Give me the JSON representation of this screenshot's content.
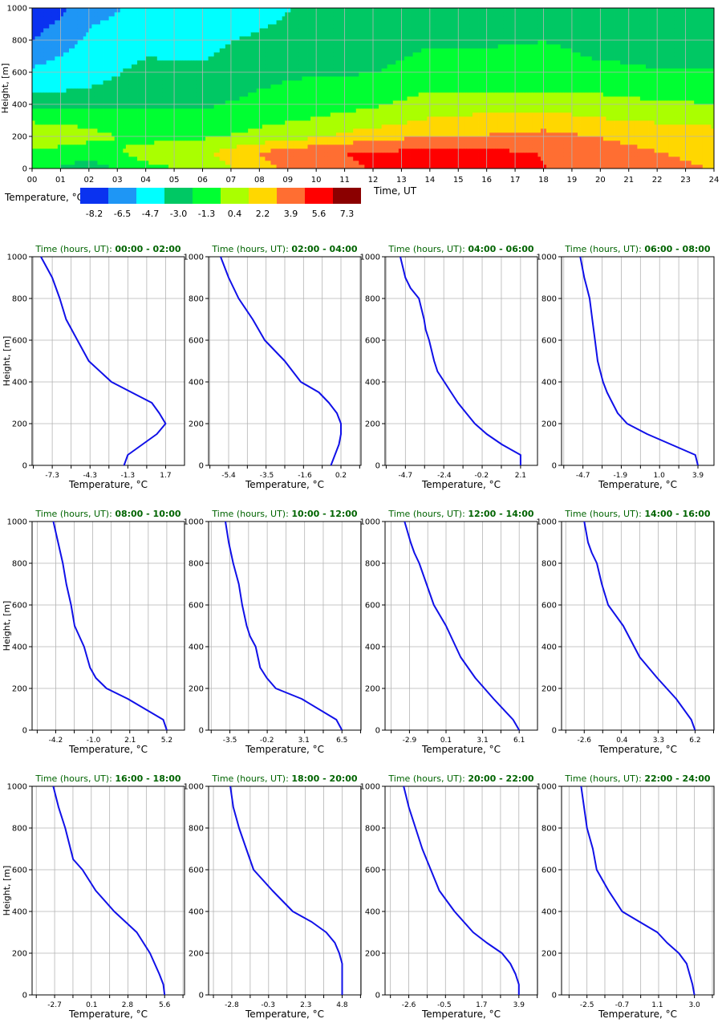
{
  "heatmap": {
    "ylabel": "Height, [m]",
    "xlabel": "Time, UT",
    "x_ticks": [
      "00",
      "01",
      "02",
      "03",
      "04",
      "05",
      "06",
      "07",
      "08",
      "09",
      "10",
      "11",
      "12",
      "13",
      "14",
      "15",
      "16",
      "17",
      "18",
      "19",
      "20",
      "21",
      "22",
      "23",
      "24"
    ],
    "y_ticks": [
      "0",
      "200",
      "400",
      "600",
      "800",
      "1000"
    ],
    "x_range": [
      0,
      24
    ],
    "y_range": [
      0,
      1000
    ],
    "grid": true,
    "colorbar_title": "Temperature, °C",
    "colorbar_labels": [
      "-8.2",
      "-6.5",
      "-4.7",
      "-3.0",
      "-1.3",
      "0.4",
      "2.2",
      "3.9",
      "5.6",
      "7.3"
    ],
    "colorbar_colors": [
      "#0a32f0",
      "#1e96f5",
      "#00ffff",
      "#00c864",
      "#00ff32",
      "#aaff00",
      "#ffd700",
      "#ff6e32",
      "#ff0000",
      "#8b0000"
    ]
  },
  "chart_data": [
    {
      "type": "heatmap",
      "title": "",
      "xlabel": "Time, UT",
      "ylabel": "Height, [m]",
      "x_range": [
        0,
        24
      ],
      "y_range": [
        0,
        1000
      ],
      "colorbar_label": "Temperature, °C",
      "color_levels": [
        -8.2,
        -6.5,
        -4.7,
        -3.0,
        -1.3,
        0.4,
        2.2,
        3.9,
        5.6,
        7.3
      ],
      "heights": [
        0,
        100,
        200,
        300,
        400,
        500,
        600,
        700,
        800,
        900,
        1000
      ],
      "hours": [
        0,
        2,
        4,
        6,
        8,
        10,
        12,
        14,
        16,
        18,
        20,
        22,
        24
      ],
      "values": [
        [
          -1.6,
          -3.0,
          -1.0,
          0.0,
          2.4,
          4.4,
          4.8,
          4.9,
          4.9,
          4.8,
          3.9,
          3.4,
          3.0
        ],
        [
          -0.6,
          -1.5,
          0.3,
          0.9,
          3.2,
          4.6,
          4.9,
          5.2,
          5.1,
          4.7,
          3.6,
          3.1,
          2.7
        ],
        [
          0.7,
          0.1,
          -1.0,
          -0.7,
          0.0,
          1.0,
          2.5,
          3.0,
          3.2,
          3.6,
          3.0,
          2.5,
          2.1
        ],
        [
          -0.6,
          -0.9,
          -1.8,
          -1.6,
          -0.8,
          -0.3,
          0.4,
          1.5,
          1.9,
          2.2,
          1.5,
          1.1,
          0.8
        ],
        [
          -2.6,
          -2.6,
          -2.3,
          -2.4,
          -1.6,
          -1.1,
          -0.7,
          0.3,
          0.5,
          0.6,
          0.2,
          -0.2,
          -0.4
        ],
        [
          -4.4,
          -3.8,
          -3.0,
          -3.2,
          -2.2,
          -1.7,
          -1.6,
          -0.6,
          -0.6,
          -0.6,
          -0.8,
          -1.2,
          -1.3
        ],
        [
          -5.3,
          -4.6,
          -3.3,
          -3.5,
          -2.5,
          -2.3,
          -2.2,
          -1.4,
          -1.4,
          -1.3,
          -1.7,
          -2.1,
          -2.0
        ],
        [
          -6.2,
          -4.9,
          -3.9,
          -4.0,
          -3.1,
          -2.6,
          -2.6,
          -1.9,
          -2.0,
          -1.7,
          -2.3,
          -2.4,
          -2.5
        ],
        [
          -7.3,
          -5.3,
          -4.4,
          -4.2,
          -3.6,
          -3.1,
          -2.8,
          -2.3,
          -2.3,
          -2.2,
          -2.6,
          -2.7,
          -2.8
        ],
        [
          -8.2,
          -5.7,
          -5.0,
          -4.6,
          -4.0,
          -3.4,
          -3.1,
          -2.6,
          -2.5,
          -2.6,
          -3.0,
          -3.1,
          -3.1
        ],
        [
          -9.5,
          -6.2,
          -5.2,
          -4.8,
          -4.2,
          -3.6,
          -3.4,
          -2.8,
          -2.7,
          -2.8,
          -3.2,
          -3.3,
          -3.3
        ]
      ]
    },
    {
      "type": "line",
      "title_prefix": "Time (hours, UT): ",
      "title_range": "00:00 - 02:00",
      "xlabel": "Temperature, °C",
      "ylabel": "Height, [m]",
      "xticks": [
        "-7.3",
        "-4.3",
        "-1.3",
        "1.7"
      ],
      "xlim": [
        -8.9,
        3.2
      ],
      "ylim": [
        0,
        1000
      ],
      "series": [
        {
          "color": "#1010e8",
          "x": [
            -1.6,
            -1.3,
            1.0,
            1.7,
            1.2,
            0.6,
            -1.0,
            -2.6,
            -4.4,
            -5.3,
            -6.2,
            -6.7,
            -7.3,
            -8.2
          ],
          "y": [
            0,
            50,
            150,
            200,
            250,
            300,
            350,
            400,
            500,
            600,
            700,
            800,
            900,
            1000
          ]
        }
      ]
    },
    {
      "type": "line",
      "title_prefix": "Time (hours, UT): ",
      "title_range": "02:00 - 04:00",
      "xlabel": "Temperature, °C",
      "ylabel": "Height, [m]",
      "xticks": [
        "-5.4",
        "-3.5",
        "-1.6",
        "0.2"
      ],
      "xlim": [
        -6.4,
        1.2
      ],
      "ylim": [
        0,
        1000
      ],
      "series": [
        {
          "color": "#1010e8",
          "x": [
            -0.3,
            -0.1,
            0.1,
            0.2,
            0.2,
            0.0,
            -0.4,
            -0.9,
            -1.8,
            -2.6,
            -3.6,
            -4.2,
            -4.9,
            -5.4,
            -5.8
          ],
          "y": [
            0,
            50,
            100,
            150,
            200,
            250,
            300,
            350,
            400,
            500,
            600,
            700,
            800,
            900,
            1000
          ]
        }
      ]
    },
    {
      "type": "line",
      "title_prefix": "Time (hours, UT): ",
      "title_range": "04:00 - 06:00",
      "xlabel": "Temperature, °C",
      "ylabel": "Height, [m]",
      "xticks": [
        "-4.7",
        "-2.4",
        "-0.2",
        "2.1"
      ],
      "xlim": [
        -5.9,
        3.1
      ],
      "ylim": [
        0,
        1000
      ],
      "series": [
        {
          "color": "#1010e8",
          "x": [
            2.1,
            2.1,
            1.0,
            0.1,
            -0.6,
            -1.1,
            -1.6,
            -2.0,
            -2.4,
            -2.8,
            -3.0,
            -3.3,
            -3.5,
            -3.6,
            -3.9,
            -4.4,
            -4.7,
            -5.0
          ],
          "y": [
            0,
            50,
            100,
            150,
            200,
            250,
            300,
            350,
            400,
            450,
            500,
            600,
            650,
            700,
            800,
            850,
            900,
            1000
          ]
        }
      ]
    },
    {
      "type": "line",
      "title_prefix": "Time (hours, UT): ",
      "title_range": "06:00 - 08:00",
      "xlabel": "Temperature, °C",
      "ylabel": "Height, [m]",
      "xticks": [
        "-4.7",
        "-1.9",
        "1.0",
        "3.9"
      ],
      "xlim": [
        -6.3,
        5.1
      ],
      "ylim": [
        0,
        1000
      ],
      "series": [
        {
          "color": "#1010e8",
          "x": [
            3.9,
            3.7,
            1.9,
            0.1,
            -1.4,
            -2.1,
            -2.5,
            -2.9,
            -3.2,
            -3.4,
            -3.6,
            -3.8,
            -3.9,
            -4.0,
            -4.2,
            -4.4,
            -4.6,
            -4.9
          ],
          "y": [
            0,
            50,
            100,
            150,
            200,
            250,
            300,
            350,
            400,
            450,
            500,
            600,
            650,
            700,
            800,
            850,
            900,
            1000
          ]
        }
      ]
    },
    {
      "type": "line",
      "title_prefix": "Time (hours, UT): ",
      "title_range": "08:00 - 10:00",
      "xlabel": "Temperature, °C",
      "ylabel": "Height, [m]",
      "xticks": [
        "-4.2",
        "-1.0",
        "2.1",
        "5.2"
      ],
      "xlim": [
        -6.2,
        6.7
      ],
      "ylim": [
        0,
        1000
      ],
      "series": [
        {
          "color": "#1010e8",
          "x": [
            5.2,
            4.9,
            1.9,
            0.1,
            -0.8,
            -1.3,
            -1.8,
            -2.2,
            -2.6,
            -2.9,
            -3.3,
            -3.6,
            -4.0,
            -4.4
          ],
          "y": [
            0,
            50,
            150,
            200,
            250,
            300,
            400,
            450,
            500,
            600,
            700,
            800,
            900,
            1000
          ]
        }
      ]
    },
    {
      "type": "line",
      "title_prefix": "Time (hours, UT): ",
      "title_range": "10:00 - 12:00",
      "xlabel": "Temperature, °C",
      "ylabel": "Height, [m]",
      "xticks": [
        "-3.5",
        "-0.2",
        "3.1",
        "6.5"
      ],
      "xlim": [
        -5.4,
        8.2
      ],
      "ylim": [
        0,
        1000
      ],
      "series": [
        {
          "color": "#1010e8",
          "x": [
            6.5,
            6.0,
            2.9,
            0.6,
            -0.2,
            -0.8,
            -1.2,
            -1.7,
            -2.0,
            -2.4,
            -2.7,
            -3.2,
            -3.6,
            -3.9
          ],
          "y": [
            0,
            50,
            150,
            200,
            250,
            300,
            400,
            450,
            500,
            600,
            700,
            800,
            900,
            1000
          ]
        }
      ]
    },
    {
      "type": "line",
      "title_prefix": "Time (hours, UT): ",
      "title_range": "12:00 - 14:00",
      "xlabel": "Temperature, °C",
      "ylabel": "Height, [m]",
      "xticks": [
        "-2.9",
        "0.1",
        "3.1",
        "6.1"
      ],
      "xlim": [
        -4.9,
        7.6
      ],
      "ylim": [
        0,
        1000
      ],
      "series": [
        {
          "color": "#1010e8",
          "x": [
            6.1,
            5.6,
            4.0,
            2.5,
            1.3,
            0.1,
            -0.9,
            -1.5,
            -2.1,
            -2.5,
            -2.8,
            -3.3
          ],
          "y": [
            0,
            50,
            150,
            250,
            350,
            500,
            600,
            700,
            800,
            850,
            900,
            1000
          ]
        }
      ]
    },
    {
      "type": "line",
      "title_prefix": "Time (hours, UT): ",
      "title_range": "14:00 - 16:00",
      "xlabel": "Temperature, °C",
      "ylabel": "Height, [m]",
      "xticks": [
        "-2.6",
        "0.4",
        "3.3",
        "6.2"
      ],
      "xlim": [
        -4.4,
        7.7
      ],
      "ylim": [
        0,
        1000
      ],
      "series": [
        {
          "color": "#1010e8",
          "x": [
            6.2,
            5.9,
            4.7,
            3.2,
            1.8,
            0.5,
            -0.7,
            -1.2,
            -1.6,
            -2.0,
            -2.3,
            -2.6
          ],
          "y": [
            0,
            50,
            150,
            250,
            350,
            500,
            600,
            700,
            800,
            850,
            900,
            1000
          ]
        }
      ]
    },
    {
      "type": "line",
      "title_prefix": "Time (hours, UT): ",
      "title_range": "16:00 - 18:00",
      "xlabel": "Temperature, °C",
      "ylabel": "Height, [m]",
      "xticks": [
        "-2.7",
        "0.1",
        "2.8",
        "5.6"
      ],
      "xlim": [
        -4.4,
        7.1
      ],
      "ylim": [
        0,
        1000
      ],
      "series": [
        {
          "color": "#1010e8",
          "x": [
            5.6,
            5.5,
            5.2,
            4.5,
            3.5,
            1.8,
            0.4,
            -0.6,
            -1.3,
            -1.5,
            -1.9,
            -2.4,
            -2.8
          ],
          "y": [
            0,
            50,
            100,
            200,
            300,
            400,
            500,
            600,
            650,
            700,
            800,
            900,
            1000
          ]
        }
      ]
    },
    {
      "type": "line",
      "title_prefix": "Time (hours, UT): ",
      "title_range": "18:00 - 20:00",
      "xlabel": "Temperature, °C",
      "ylabel": "Height, [m]",
      "xticks": [
        "-2.8",
        "-0.3",
        "2.3",
        "4.8"
      ],
      "xlim": [
        -4.4,
        6.1
      ],
      "ylim": [
        0,
        1000
      ],
      "series": [
        {
          "color": "#1010e8",
          "x": [
            4.8,
            4.8,
            4.8,
            4.6,
            4.3,
            3.7,
            2.7,
            1.4,
            0.0,
            -1.3,
            -1.8,
            -2.3,
            -2.7,
            -2.9
          ],
          "y": [
            0,
            50,
            150,
            200,
            250,
            300,
            350,
            400,
            500,
            600,
            700,
            800,
            900,
            1000
          ]
        }
      ]
    },
    {
      "type": "line",
      "title_prefix": "Time (hours, UT): ",
      "title_range": "20:00 - 22:00",
      "xlabel": "Temperature, °C",
      "ylabel": "Height, [m]",
      "xticks": [
        "-2.6",
        "-0.5",
        "1.7",
        "3.9"
      ],
      "xlim": [
        -4.0,
        5.0
      ],
      "ylim": [
        0,
        1000
      ],
      "series": [
        {
          "color": "#1010e8",
          "x": [
            3.9,
            3.9,
            3.7,
            3.4,
            2.9,
            2.0,
            1.2,
            0.1,
            -0.8,
            -1.3,
            -1.8,
            -2.2,
            -2.6,
            -2.9
          ],
          "y": [
            0,
            50,
            100,
            150,
            200,
            250,
            300,
            400,
            500,
            600,
            700,
            800,
            900,
            1000
          ]
        }
      ]
    },
    {
      "type": "line",
      "title_prefix": "Time (hours, UT): ",
      "title_range": "22:00 - 24:00",
      "xlabel": "Temperature, °C",
      "ylabel": "Height, [m]",
      "xticks": [
        "-2.5",
        "-0.7",
        "1.1",
        "3.0"
      ],
      "xlim": [
        -3.8,
        4.0
      ],
      "ylim": [
        0,
        1000
      ],
      "series": [
        {
          "color": "#1010e8",
          "x": [
            3.0,
            2.9,
            2.6,
            2.2,
            1.6,
            1.1,
            0.2,
            -0.7,
            -1.4,
            -2.0,
            -2.2,
            -2.5,
            -2.8
          ],
          "y": [
            0,
            50,
            150,
            200,
            250,
            300,
            350,
            400,
            500,
            600,
            700,
            800,
            1000
          ]
        }
      ]
    }
  ]
}
